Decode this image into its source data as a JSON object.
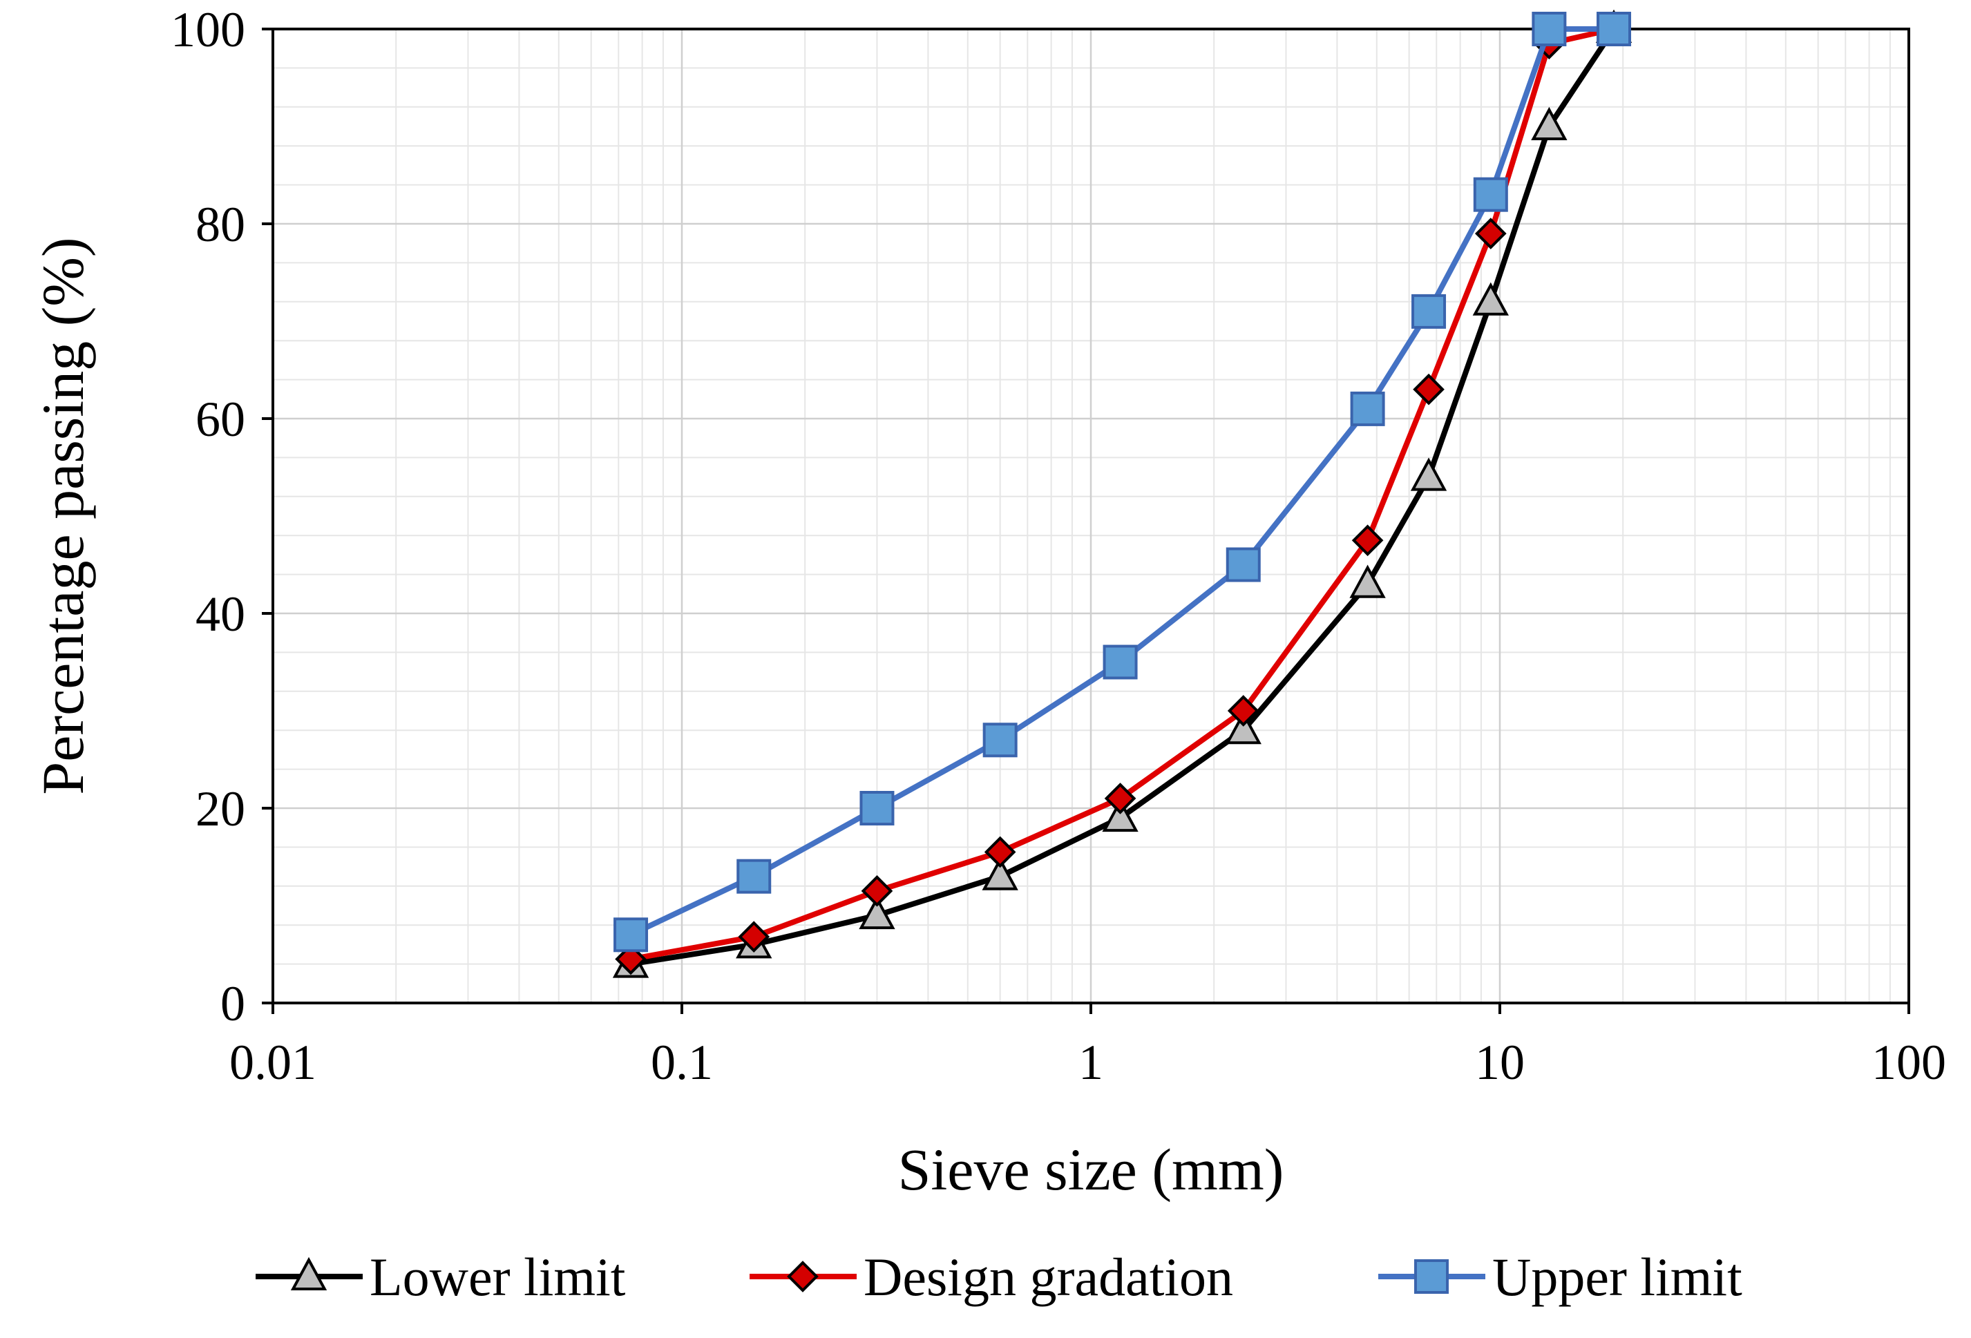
{
  "chart_data": {
    "type": "line",
    "title": "",
    "xlabel": "Sieve size (mm)",
    "ylabel": "Percentage  passing  (%)",
    "xscale": "log",
    "xlim": [
      0.01,
      100
    ],
    "ylim": [
      0,
      100
    ],
    "grid": true,
    "legend_position": "bottom",
    "x_ticks": [
      {
        "value": 0.01,
        "label": "0.01"
      },
      {
        "value": 0.1,
        "label": "0.1"
      },
      {
        "value": 1,
        "label": "1"
      },
      {
        "value": 10,
        "label": "10"
      },
      {
        "value": 100,
        "label": "100"
      }
    ],
    "y_ticks": [
      {
        "value": 0,
        "label": "0"
      },
      {
        "value": 20,
        "label": "20"
      },
      {
        "value": 40,
        "label": "40"
      },
      {
        "value": 60,
        "label": "60"
      },
      {
        "value": 80,
        "label": "80"
      },
      {
        "value": 100,
        "label": "100"
      }
    ],
    "x": [
      0.075,
      0.15,
      0.3,
      0.6,
      1.18,
      2.36,
      4.75,
      6.7,
      9.5,
      13.2,
      19
    ],
    "series": [
      {
        "name": "Lower limit",
        "marker": "triangle",
        "line_color": "#000000",
        "marker_fill": "#bfbfbf",
        "values": [
          4,
          6,
          9,
          13,
          19,
          28,
          43,
          54,
          72,
          90,
          100
        ]
      },
      {
        "name": "Design gradation",
        "marker": "diamond",
        "line_color": "#e00000",
        "marker_fill": "#d40000",
        "values": [
          4.5,
          6.8,
          11.5,
          15.5,
          21,
          30,
          47.5,
          63,
          79,
          98.5,
          100
        ]
      },
      {
        "name": "Upper limit",
        "marker": "square",
        "line_color": "#4472c4",
        "marker_fill": "#5b9bd5",
        "values": [
          7,
          13,
          20,
          27,
          35,
          45,
          61,
          71,
          83,
          100,
          100
        ]
      }
    ]
  }
}
